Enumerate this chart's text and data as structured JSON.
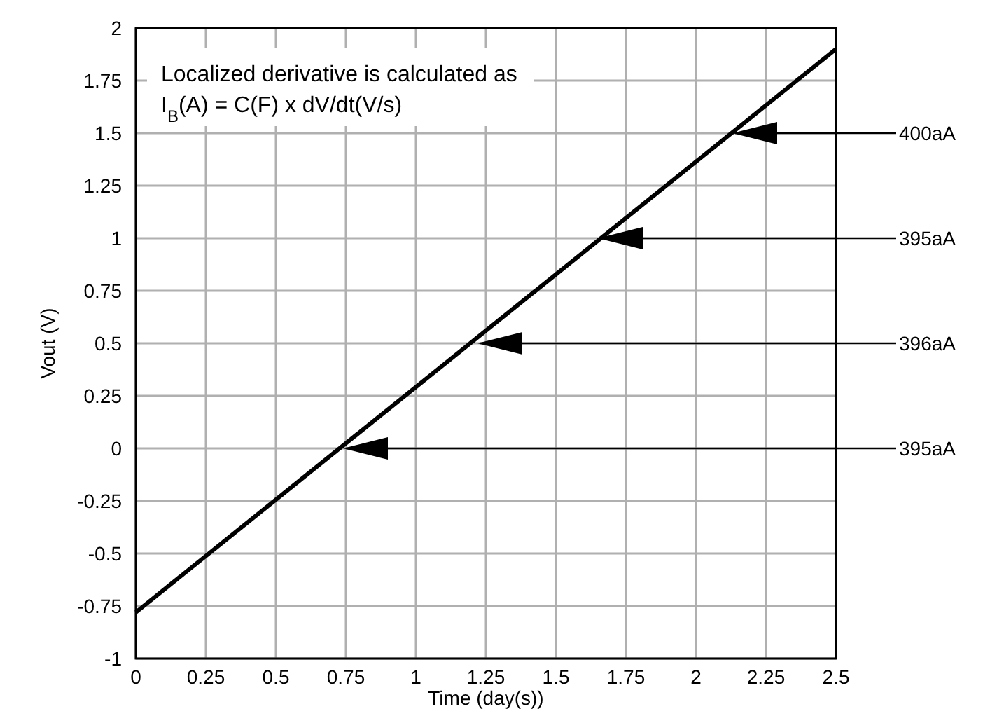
{
  "chart_data": {
    "type": "line",
    "xlabel": "Time (day(s))",
    "ylabel": "Vout (V)",
    "x": [
      0,
      2.5
    ],
    "series": [
      {
        "color": "#000000",
        "values": [
          -0.78,
          1.9
        ]
      }
    ],
    "xlim": [
      0,
      2.5
    ],
    "xticks": [
      0,
      0.25,
      0.5,
      0.75,
      1,
      1.25,
      1.5,
      1.75,
      2,
      2.25,
      2.5
    ],
    "ylim": [
      -1,
      2
    ],
    "yticks": [
      -1,
      -0.75,
      -0.5,
      -0.25,
      0,
      0.25,
      0.5,
      0.75,
      1,
      1.25,
      1.5,
      1.75,
      2
    ],
    "grid": true,
    "marker": "none",
    "line_style": "solid",
    "annotations": [
      "Localized derivative is calculated as",
      "I$_{B}$(A) = C(F) x dV/dt(V/s)",
      {
        "text": "400aA",
        "x": 2.13,
        "y": 1.5
      },
      {
        "text": "395aA",
        "x": 1.65,
        "y": 1
      },
      {
        "text": "396aA",
        "x": 1.22,
        "y": 0.5
      },
      {
        "text": "395aA",
        "x": 0.74,
        "y": 0
      }
    ]
  }
}
